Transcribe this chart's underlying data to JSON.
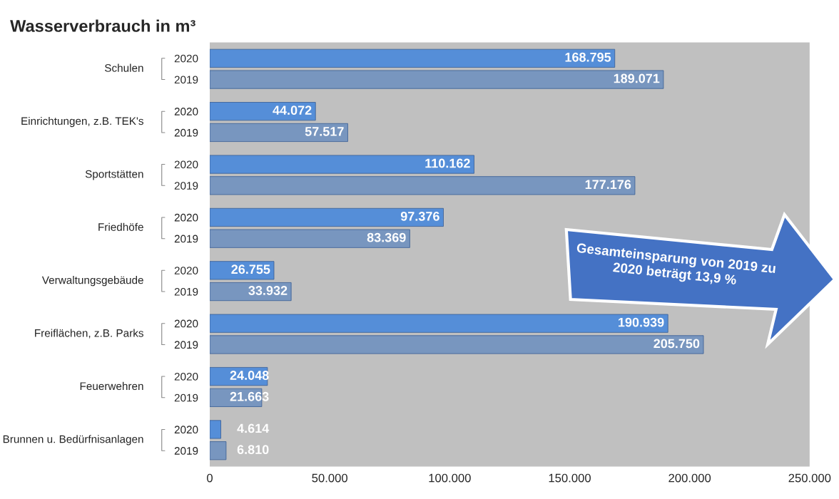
{
  "chart_data": {
    "type": "bar",
    "orientation": "horizontal",
    "title": "Wasserverbrauch in m³",
    "categories": [
      "Schulen",
      "Einrichtungen, z.B. TEK's",
      "Sportstätten",
      "Friedhöfe",
      "Verwaltungsgebäude",
      "Freiflächen, z.B. Parks",
      "Feuerwehren",
      "Brunnen u. Bedürfnisanlagen"
    ],
    "series": [
      {
        "name": "2020",
        "color": "#558ed8",
        "values": [
          168795,
          44072,
          110162,
          97376,
          26755,
          190939,
          24048,
          4614
        ],
        "value_labels": [
          "168.795",
          "44.072",
          "110.162",
          "97.376",
          "26.755",
          "190.939",
          "24.048",
          "4.614"
        ]
      },
      {
        "name": "2019",
        "color": "#7896bf",
        "values": [
          189071,
          57517,
          177176,
          83369,
          33932,
          205750,
          21663,
          6810
        ],
        "value_labels": [
          "189.071",
          "57.517",
          "177.176",
          "83.369",
          "33.932",
          "205.750",
          "21.663",
          "6.810"
        ]
      }
    ],
    "xlim": [
      0,
      250000
    ],
    "xticks": [
      0,
      {
        "value": 50000,
        "label": "50.000"
      },
      {
        "value": 100000,
        "label": "100.000"
      },
      {
        "value": 150000,
        "label": "150.000"
      },
      {
        "value": 200000,
        "label": "200.000"
      },
      {
        "value": 250000,
        "label": "250.000"
      }
    ],
    "grid": false,
    "legend": false,
    "annotations": [
      "Gesamteinsparung von 2019 zu 2020 beträgt 13,9 %"
    ]
  }
}
